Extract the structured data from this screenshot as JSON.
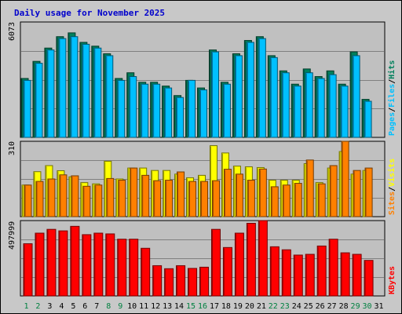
{
  "title": "Daily usage for November 2025",
  "colors": {
    "hits": "#00805c",
    "files": "#00c0ff",
    "pages": "#00c0ff",
    "visits": "#ffff00",
    "sites": "#ff8000",
    "kbytes": "#ff0000",
    "weekday_label": "#000000",
    "weekend_label": "#008040"
  },
  "chart_data": [
    {
      "type": "bar",
      "panel": "hits-files-pages",
      "y_max_label": "6073",
      "ylim": [
        0,
        6073
      ],
      "x": [
        1,
        2,
        3,
        4,
        5,
        6,
        7,
        8,
        9,
        10,
        11,
        12,
        13,
        14,
        15,
        16,
        17,
        18,
        19,
        20,
        21,
        22,
        23,
        24,
        25,
        26,
        27,
        28,
        29,
        30,
        31
      ],
      "series": [
        {
          "name": "Hits",
          "values": [
            3100,
            4000,
            4700,
            5300,
            5500,
            5000,
            4800,
            4400,
            3100,
            3400,
            2900,
            2900,
            2700,
            2200,
            3000,
            2600,
            4600,
            2900,
            4400,
            5100,
            5300,
            4300,
            3500,
            2800,
            3600,
            3200,
            3500,
            2800,
            4500,
            2000,
            0
          ]
        },
        {
          "name": "Files",
          "values": [
            3000,
            3900,
            4600,
            5200,
            5300,
            4900,
            4700,
            4300,
            3000,
            3200,
            2800,
            2800,
            2600,
            2100,
            3000,
            2500,
            4500,
            2800,
            4300,
            5000,
            5200,
            4200,
            3400,
            2700,
            3400,
            3100,
            3300,
            2700,
            4300,
            1900,
            0
          ]
        }
      ],
      "legend": [
        "Pages",
        "Files",
        "Hits"
      ]
    },
    {
      "type": "bar",
      "panel": "visits-sites",
      "y_max_label": "310",
      "ylim": [
        0,
        310
      ],
      "x": [
        1,
        2,
        3,
        4,
        5,
        6,
        7,
        8,
        9,
        10,
        11,
        12,
        13,
        14,
        15,
        16,
        17,
        18,
        19,
        20,
        21,
        22,
        23,
        24,
        25,
        26,
        27,
        28,
        29,
        30,
        31
      ],
      "series": [
        {
          "name": "Visits",
          "values": [
            130,
            185,
            210,
            189,
            164,
            140,
            135,
            228,
            155,
            200,
            200,
            190,
            190,
            175,
            160,
            170,
            292,
            262,
            208,
            205,
            202,
            150,
            150,
            150,
            218,
            140,
            200,
            268,
            175,
            190,
            0
          ]
        },
        {
          "name": "Sites",
          "values": [
            130,
            145,
            155,
            172,
            168,
            125,
            130,
            157,
            150,
            200,
            170,
            148,
            150,
            184,
            145,
            145,
            148,
            195,
            175,
            150,
            196,
            123,
            130,
            137,
            233,
            135,
            210,
            310,
            190,
            200,
            0
          ]
        }
      ],
      "legend": [
        "Sites",
        "Visits"
      ]
    },
    {
      "type": "bar",
      "panel": "kbytes",
      "y_max_label": "497999",
      "ylim": [
        0,
        497999
      ],
      "x": [
        1,
        2,
        3,
        4,
        5,
        6,
        7,
        8,
        9,
        10,
        11,
        12,
        13,
        14,
        15,
        16,
        17,
        18,
        19,
        20,
        21,
        22,
        23,
        24,
        25,
        26,
        27,
        28,
        29,
        30,
        31
      ],
      "series": [
        {
          "name": "KBytes",
          "values": [
            345000,
            415000,
            440000,
            430000,
            460000,
            405000,
            415000,
            410000,
            375000,
            375000,
            315000,
            200000,
            180000,
            200000,
            182000,
            190000,
            440000,
            320000,
            415000,
            480000,
            500000,
            325000,
            305000,
            270000,
            275000,
            330000,
            375000,
            285000,
            275000,
            235000,
            0
          ]
        }
      ],
      "legend": [
        "KBytes"
      ]
    }
  ]
}
